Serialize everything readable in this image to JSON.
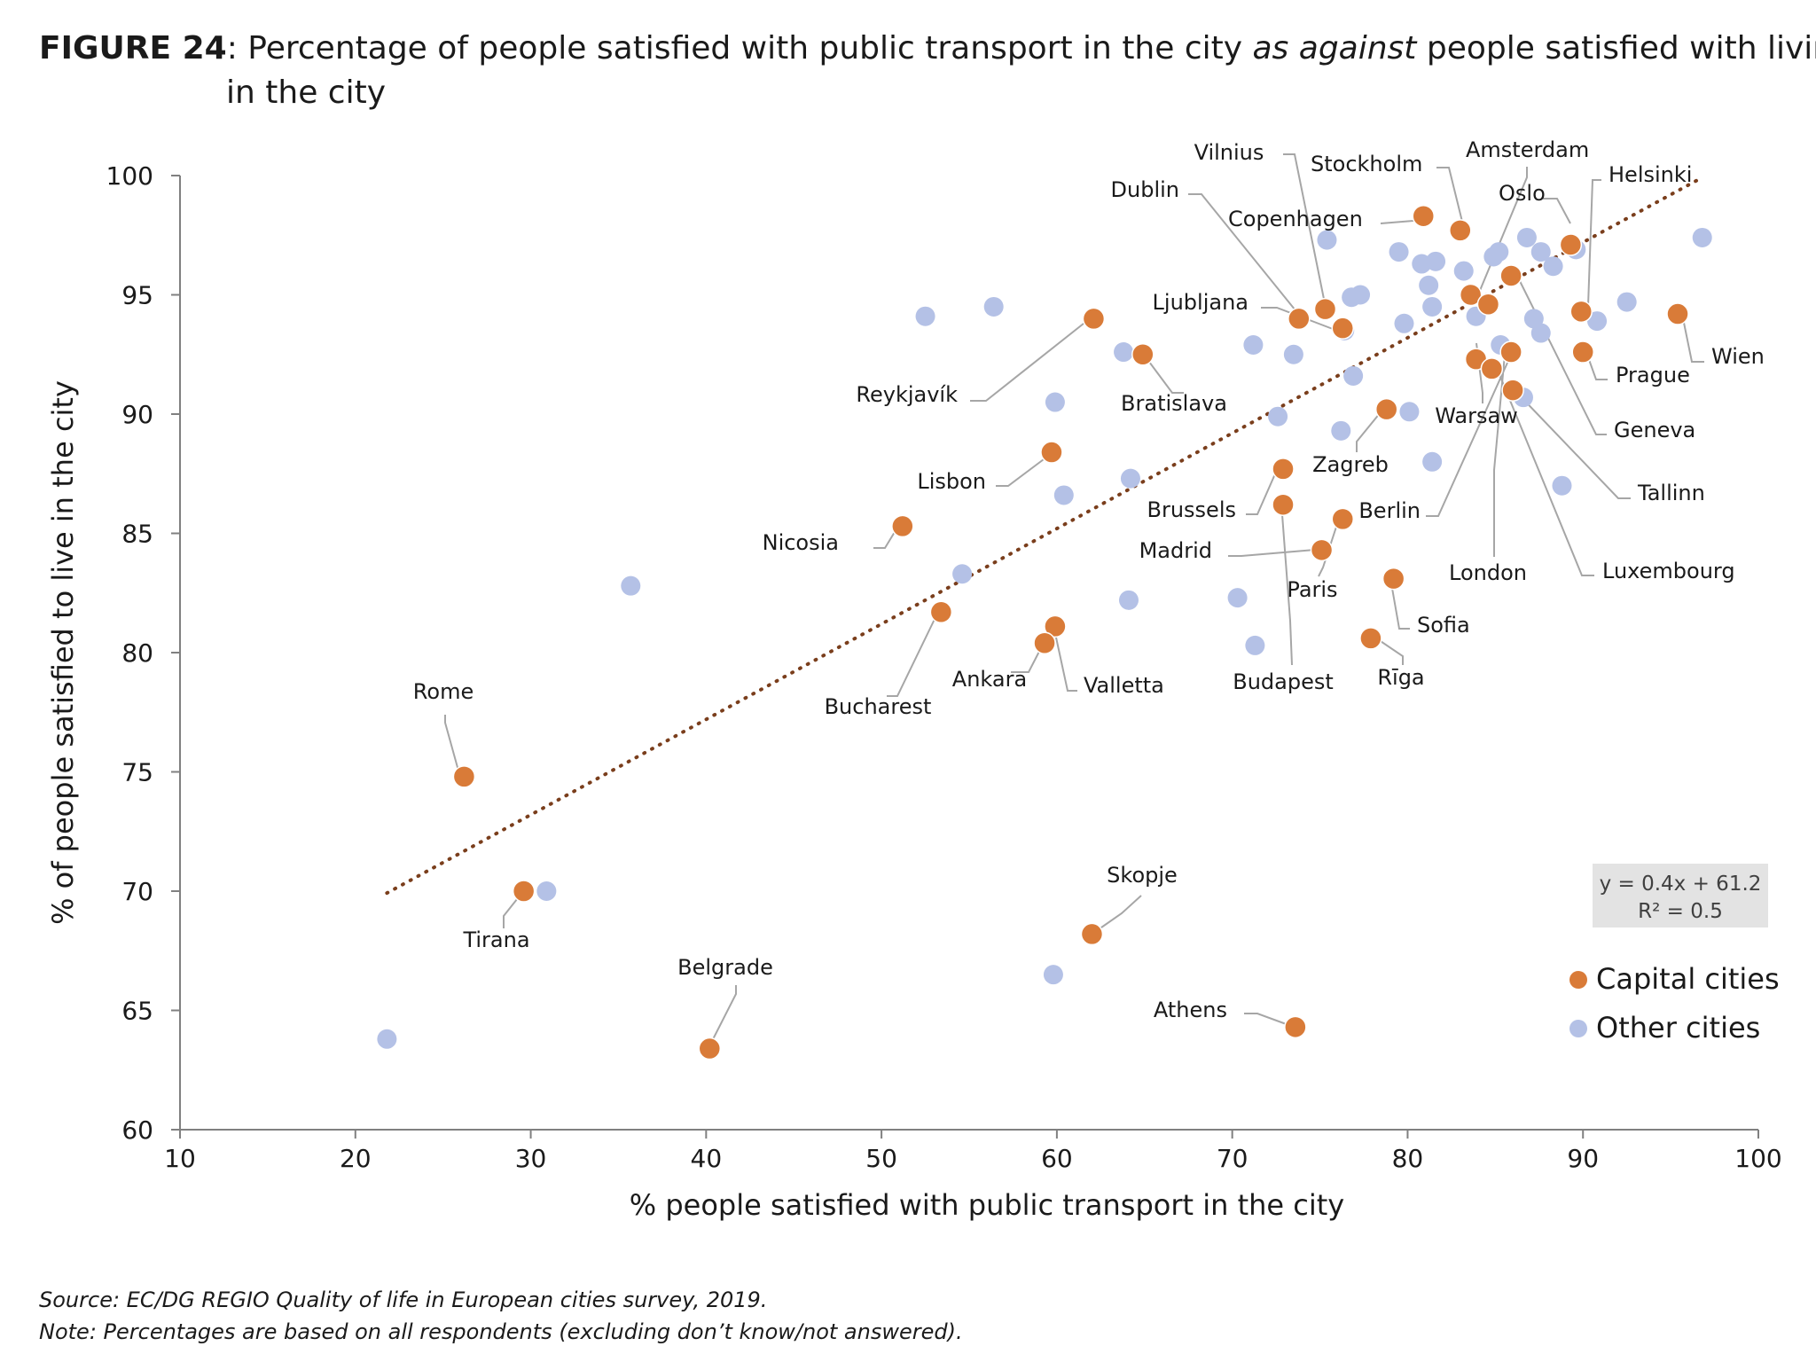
{
  "figure": {
    "label": "FIGURE 24",
    "colon": ":",
    "title_part1": " Percentage of people satisfied with public transport in the city ",
    "title_emph": "as against",
    "title_part2": " people satisfied with living",
    "title_line2": "in the city"
  },
  "source": "Source: EC/DG REGIO Quality of life in European cities survey, 2019.",
  "note": "Note: Percentages are based on all respondents (excluding don’t know/not answered).",
  "colors": {
    "capital": "#d97b38",
    "other": "#b4c1e6",
    "trend": "#7a3e1c",
    "eqbox": "#e3e3e3",
    "axis": "#808080"
  },
  "chart_data": {
    "type": "scatter",
    "xlabel": "% people satisfied with public transport in the city",
    "ylabel": "% of people satisfied to live in the city",
    "xlim": [
      10,
      100
    ],
    "ylim": [
      60,
      100
    ],
    "xticks": [
      10,
      20,
      30,
      40,
      50,
      60,
      70,
      80,
      90,
      100
    ],
    "yticks": [
      60,
      65,
      70,
      75,
      80,
      85,
      90,
      95,
      100
    ],
    "grid": false,
    "legend_position": "bottom-right",
    "trendline": {
      "equation": "y = 0.4x + 61.2",
      "r2": "R² = 0.5",
      "x_start": 21.8,
      "x_end": 96.8
    },
    "series": [
      {
        "name": "Capital cities",
        "points": [
          {
            "label": "Vilnius",
            "x": 75.3,
            "y": 94.4
          },
          {
            "label": "Stockholm",
            "x": 83.0,
            "y": 97.7
          },
          {
            "label": "Amsterdam",
            "x": 83.6,
            "y": 95.0
          },
          {
            "label": "Dublin",
            "x": 73.8,
            "y": 94.0
          },
          {
            "label": "Copenhagen",
            "x": 80.9,
            "y": 98.3
          },
          {
            "label": "Oslo",
            "x": 89.3,
            "y": 97.1
          },
          {
            "label": "Helsinki",
            "x": 89.9,
            "y": 94.3
          },
          {
            "label": "Ljubljana",
            "x": 76.3,
            "y": 93.6
          },
          {
            "label": "Reykjavík",
            "x": 62.1,
            "y": 94.0
          },
          {
            "label": "Bratislava",
            "x": 64.9,
            "y": 92.5
          },
          {
            "label": "Wien",
            "x": 95.4,
            "y": 94.2
          },
          {
            "label": "Prague",
            "x": 90.0,
            "y": 92.6
          },
          {
            "label": "Geneva",
            "x": 85.9,
            "y": 95.8
          },
          {
            "label": "Warsaw",
            "x": 84.6,
            "y": 94.6
          },
          {
            "label": "Berlin",
            "x": 85.9,
            "y": 92.6
          },
          {
            "label": "London",
            "x": 83.9,
            "y": 92.3
          },
          {
            "label": "Luxembourg",
            "x": 84.8,
            "y": 91.9
          },
          {
            "label": "Tallinn",
            "x": 86.0,
            "y": 91.0
          },
          {
            "label": "Zagreb",
            "x": 78.8,
            "y": 90.2
          },
          {
            "label": "Lisbon",
            "x": 59.7,
            "y": 88.4
          },
          {
            "label": "Brussels",
            "x": 72.9,
            "y": 87.7
          },
          {
            "label": "Budapest",
            "x": 72.9,
            "y": 86.2
          },
          {
            "label": "Nicosia",
            "x": 51.2,
            "y": 85.3
          },
          {
            "label": "Paris",
            "x": 76.3,
            "y": 85.6
          },
          {
            "label": "Madrid",
            "x": 75.1,
            "y": 84.3
          },
          {
            "label": "Sofia",
            "x": 79.2,
            "y": 83.1
          },
          {
            "label": "Bucharest",
            "x": 53.4,
            "y": 81.7
          },
          {
            "label": "Valletta",
            "x": 59.9,
            "y": 81.1
          },
          {
            "label": "Ankara",
            "x": 59.3,
            "y": 80.4
          },
          {
            "label": "Rīga",
            "x": 77.9,
            "y": 80.6
          },
          {
            "label": "Rome",
            "x": 26.2,
            "y": 74.8
          },
          {
            "label": "Tirana",
            "x": 29.6,
            "y": 70.0
          },
          {
            "label": "Skopje",
            "x": 62.0,
            "y": 68.2
          },
          {
            "label": "Athens",
            "x": 73.6,
            "y": 64.3
          },
          {
            "label": "Belgrade",
            "x": 40.2,
            "y": 63.4
          }
        ]
      },
      {
        "name": "Other cities",
        "points": [
          {
            "x": 52.5,
            "y": 94.1
          },
          {
            "x": 56.4,
            "y": 94.5
          },
          {
            "x": 63.8,
            "y": 92.6
          },
          {
            "x": 59.9,
            "y": 90.5
          },
          {
            "x": 64.2,
            "y": 87.3
          },
          {
            "x": 60.4,
            "y": 86.6
          },
          {
            "x": 54.6,
            "y": 83.3
          },
          {
            "x": 64.1,
            "y": 82.2
          },
          {
            "x": 35.7,
            "y": 82.8
          },
          {
            "x": 30.9,
            "y": 70.0
          },
          {
            "x": 21.8,
            "y": 63.8
          },
          {
            "x": 59.8,
            "y": 66.5
          },
          {
            "x": 70.3,
            "y": 82.3
          },
          {
            "x": 71.3,
            "y": 80.3
          },
          {
            "x": 71.2,
            "y": 92.9
          },
          {
            "x": 73.5,
            "y": 92.5
          },
          {
            "x": 72.6,
            "y": 89.9
          },
          {
            "x": 75.4,
            "y": 97.3
          },
          {
            "x": 76.8,
            "y": 94.9
          },
          {
            "x": 77.3,
            "y": 95.0
          },
          {
            "x": 76.9,
            "y": 91.6
          },
          {
            "x": 76.2,
            "y": 89.3
          },
          {
            "x": 76.4,
            "y": 93.5
          },
          {
            "x": 79.5,
            "y": 96.8
          },
          {
            "x": 79.8,
            "y": 93.8
          },
          {
            "x": 80.1,
            "y": 90.1
          },
          {
            "x": 80.8,
            "y": 96.3
          },
          {
            "x": 81.2,
            "y": 95.4
          },
          {
            "x": 81.6,
            "y": 96.4
          },
          {
            "x": 81.4,
            "y": 94.5
          },
          {
            "x": 81.4,
            "y": 88.0
          },
          {
            "x": 83.2,
            "y": 96.0
          },
          {
            "x": 83.9,
            "y": 94.1
          },
          {
            "x": 84.9,
            "y": 96.6
          },
          {
            "x": 85.2,
            "y": 96.8
          },
          {
            "x": 85.3,
            "y": 92.9
          },
          {
            "x": 86.8,
            "y": 97.4
          },
          {
            "x": 87.6,
            "y": 96.8
          },
          {
            "x": 88.3,
            "y": 96.2
          },
          {
            "x": 87.2,
            "y": 94.0
          },
          {
            "x": 87.6,
            "y": 93.4
          },
          {
            "x": 86.6,
            "y": 90.7
          },
          {
            "x": 88.8,
            "y": 87.0
          },
          {
            "x": 89.6,
            "y": 96.9
          },
          {
            "x": 90.8,
            "y": 93.9
          },
          {
            "x": 92.5,
            "y": 94.7
          },
          {
            "x": 96.8,
            "y": 97.4
          }
        ]
      }
    ]
  }
}
